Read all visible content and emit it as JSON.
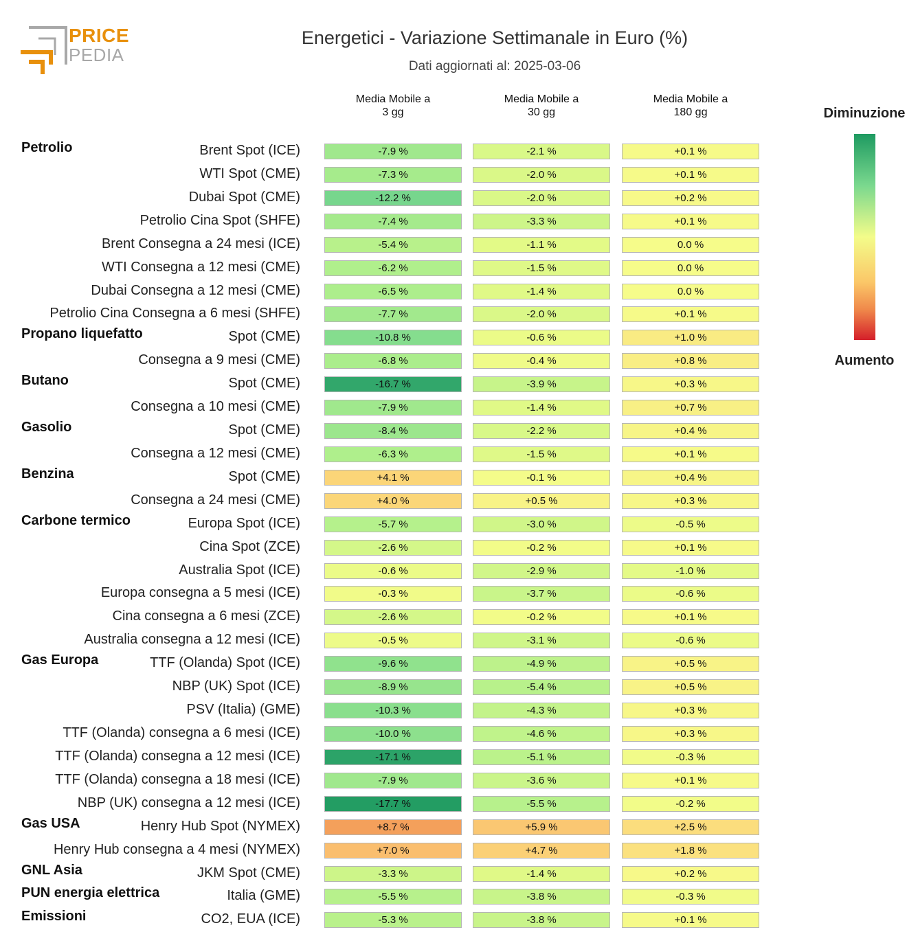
{
  "header": {
    "logo_text_top": "PRICE",
    "logo_text_bottom": "PEDIA",
    "title": "Energetici - Variazione Settimanale in Euro (%)",
    "subtitle": "Dati aggiornati al: 2025-03-06"
  },
  "legend": {
    "top_label": "Diminuzione",
    "bottom_label": "Aumento"
  },
  "colors": {
    "logo_orange": "#e8900c",
    "logo_gray": "#a8a8a8",
    "scale_green_dark": "#1e9a61",
    "scale_yellow": "#f3fc8a",
    "scale_red": "#d41f2a"
  },
  "chart_data": {
    "type": "heatmap",
    "columns": [
      "Media Mobile a\n3 gg",
      "Media Mobile a\n30 gg",
      "Media Mobile a\n180 gg"
    ],
    "groups": [
      {
        "name": "Petrolio",
        "rows": [
          {
            "label": "Brent Spot (ICE)",
            "values": [
              "-7.9 %",
              "-2.1 %",
              "+0.1 %"
            ]
          },
          {
            "label": "WTI Spot (CME)",
            "values": [
              "-7.3 %",
              "-2.0 %",
              "+0.1 %"
            ]
          },
          {
            "label": "Dubai Spot (CME)",
            "values": [
              "-12.2 %",
              "-2.0 %",
              "+0.2 %"
            ]
          },
          {
            "label": "Petrolio Cina Spot (SHFE)",
            "values": [
              "-7.4 %",
              "-3.3 %",
              "+0.1 %"
            ]
          },
          {
            "label": "Brent Consegna a 24 mesi (ICE)",
            "values": [
              "-5.4 %",
              "-1.1 %",
              "0.0 %"
            ]
          },
          {
            "label": "WTI Consegna a 12 mesi (CME)",
            "values": [
              "-6.2 %",
              "-1.5 %",
              "0.0 %"
            ]
          },
          {
            "label": "Dubai Consegna a 12 mesi (CME)",
            "values": [
              "-6.5 %",
              "-1.4 %",
              "0.0 %"
            ]
          },
          {
            "label": "Petrolio Cina Consegna a 6 mesi (SHFE)",
            "values": [
              "-7.7 %",
              "-2.0 %",
              "+0.1 %"
            ]
          }
        ]
      },
      {
        "name": "Propano liquefatto",
        "rows": [
          {
            "label": "Spot (CME)",
            "values": [
              "-10.8 %",
              "-0.6 %",
              "+1.0 %"
            ]
          },
          {
            "label": "Consegna a 9 mesi (CME)",
            "values": [
              "-6.8 %",
              "-0.4 %",
              "+0.8 %"
            ]
          }
        ]
      },
      {
        "name": "Butano",
        "rows": [
          {
            "label": "Spot (CME)",
            "values": [
              "-16.7 %",
              "-3.9 %",
              "+0.3 %"
            ]
          },
          {
            "label": "Consegna a 10 mesi (CME)",
            "values": [
              "-7.9 %",
              "-1.4 %",
              "+0.7 %"
            ]
          }
        ]
      },
      {
        "name": "Gasolio",
        "rows": [
          {
            "label": "Spot (CME)",
            "values": [
              "-8.4 %",
              "-2.2 %",
              "+0.4 %"
            ]
          },
          {
            "label": "Consegna a 12 mesi (CME)",
            "values": [
              "-6.3 %",
              "-1.5 %",
              "+0.1 %"
            ]
          }
        ]
      },
      {
        "name": "Benzina",
        "rows": [
          {
            "label": "Spot (CME)",
            "values": [
              "+4.1 %",
              "-0.1 %",
              "+0.4 %"
            ]
          },
          {
            "label": "Consegna a 24 mesi (CME)",
            "values": [
              "+4.0 %",
              "+0.5 %",
              "+0.3 %"
            ]
          }
        ]
      },
      {
        "name": "Carbone termico",
        "rows": [
          {
            "label": "Europa Spot (ICE)",
            "values": [
              "-5.7 %",
              "-3.0 %",
              "-0.5 %"
            ]
          },
          {
            "label": "Cina Spot (ZCE)",
            "values": [
              "-2.6 %",
              "-0.2 %",
              "+0.1 %"
            ]
          },
          {
            "label": "Australia Spot (ICE)",
            "values": [
              "-0.6 %",
              "-2.9 %",
              "-1.0 %"
            ]
          },
          {
            "label": "Europa consegna a 5 mesi (ICE)",
            "values": [
              "-0.3 %",
              "-3.7 %",
              "-0.6 %"
            ]
          },
          {
            "label": "Cina consegna a 6 mesi (ZCE)",
            "values": [
              "-2.6 %",
              "-0.2 %",
              "+0.1 %"
            ]
          },
          {
            "label": "Australia consegna a 12 mesi (ICE)",
            "values": [
              "-0.5 %",
              "-3.1 %",
              "-0.6 %"
            ]
          }
        ]
      },
      {
        "name": "Gas Europa",
        "rows": [
          {
            "label": "TTF (Olanda) Spot (ICE)",
            "values": [
              "-9.6 %",
              "-4.9 %",
              "+0.5 %"
            ]
          },
          {
            "label": "NBP (UK) Spot (ICE)",
            "values": [
              "-8.9 %",
              "-5.4 %",
              "+0.5 %"
            ]
          },
          {
            "label": "PSV (Italia) (GME)",
            "values": [
              "-10.3 %",
              "-4.3 %",
              "+0.3 %"
            ]
          },
          {
            "label": "TTF (Olanda) consegna a 6 mesi (ICE)",
            "values": [
              "-10.0 %",
              "-4.6 %",
              "+0.3 %"
            ]
          },
          {
            "label": "TTF (Olanda) consegna a 12 mesi (ICE)",
            "values": [
              "-17.1 %",
              "-5.1 %",
              "-0.3 %"
            ]
          },
          {
            "label": "TTF (Olanda) consegna a 18 mesi (ICE)",
            "values": [
              "-7.9 %",
              "-3.6 %",
              "+0.1 %"
            ]
          },
          {
            "label": "NBP (UK) consegna a 12 mesi (ICE)",
            "values": [
              "-17.7 %",
              "-5.5 %",
              "-0.2 %"
            ]
          }
        ]
      },
      {
        "name": "Gas USA",
        "rows": [
          {
            "label": "Henry Hub Spot (NYMEX)",
            "values": [
              "+8.7 %",
              "+5.9 %",
              "+2.5 %"
            ]
          },
          {
            "label": "Henry Hub consegna a 4 mesi (NYMEX)",
            "values": [
              "+7.0 %",
              "+4.7 %",
              "+1.8 %"
            ]
          }
        ]
      },
      {
        "name": "GNL Asia",
        "rows": [
          {
            "label": "JKM Spot (CME)",
            "values": [
              "-3.3 %",
              "-1.4 %",
              "+0.2 %"
            ]
          }
        ]
      },
      {
        "name": "PUN energia elettrica",
        "rows": [
          {
            "label": "Italia (GME)",
            "values": [
              "-5.5 %",
              "-3.8 %",
              "-0.3 %"
            ]
          }
        ]
      },
      {
        "name": "Emissioni",
        "rows": [
          {
            "label": "CO2, EUA (ICE)",
            "values": [
              "-5.3 %",
              "-3.8 %",
              "+0.1 %"
            ]
          }
        ]
      }
    ]
  }
}
